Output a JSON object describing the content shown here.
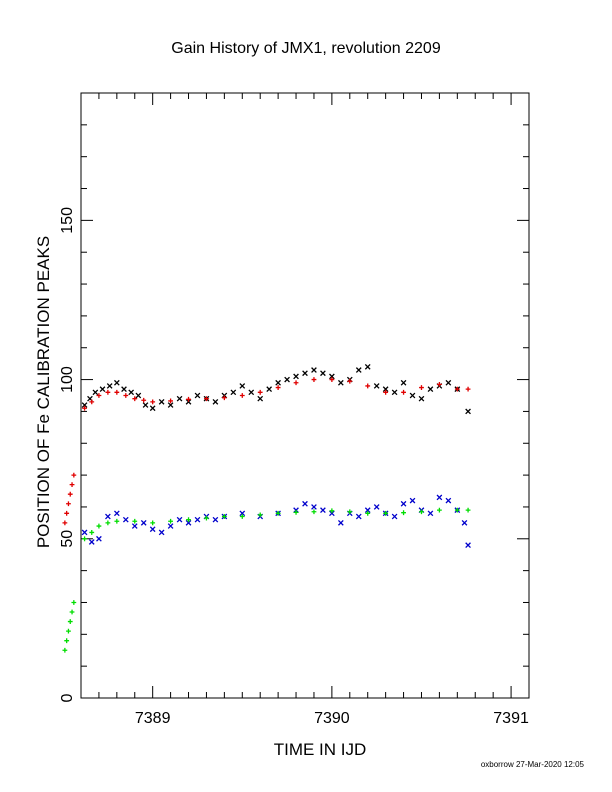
{
  "chart_data": {
    "type": "scatter",
    "title": "Gain History of JMX1, revolution 2209",
    "xlabel": "TIME IN IJD",
    "ylabel": "POSITION OF Fe CALIBRATION PEAKS",
    "xlim": [
      7388.6,
      7391.1
    ],
    "ylim": [
      0,
      190
    ],
    "xticks": [
      7389,
      7390,
      7391
    ],
    "yticks": [
      0,
      50,
      100,
      150
    ],
    "grid": false,
    "legend": "none",
    "footer": "oxborrow 27-Mar-2020 12:05",
    "series": [
      {
        "marker": "x",
        "color": "#000000",
        "points": [
          [
            7388.62,
            92
          ],
          [
            7388.65,
            94
          ],
          [
            7388.68,
            96
          ],
          [
            7388.72,
            97
          ],
          [
            7388.76,
            98
          ],
          [
            7388.8,
            99
          ],
          [
            7388.84,
            97
          ],
          [
            7388.88,
            96
          ],
          [
            7388.92,
            95
          ],
          [
            7388.96,
            92
          ],
          [
            7389.0,
            91
          ],
          [
            7389.05,
            93
          ],
          [
            7389.1,
            92
          ],
          [
            7389.15,
            94
          ],
          [
            7389.2,
            93
          ],
          [
            7389.25,
            95
          ],
          [
            7389.3,
            94
          ],
          [
            7389.35,
            93
          ],
          [
            7389.4,
            95
          ],
          [
            7389.45,
            96
          ],
          [
            7389.5,
            98
          ],
          [
            7389.55,
            96
          ],
          [
            7389.6,
            94
          ],
          [
            7389.65,
            97
          ],
          [
            7389.7,
            99
          ],
          [
            7389.75,
            100
          ],
          [
            7389.8,
            101
          ],
          [
            7389.85,
            102
          ],
          [
            7389.9,
            103
          ],
          [
            7389.95,
            102
          ],
          [
            7390.0,
            101
          ],
          [
            7390.05,
            99
          ],
          [
            7390.1,
            100
          ],
          [
            7390.15,
            103
          ],
          [
            7390.2,
            104
          ],
          [
            7390.25,
            98
          ],
          [
            7390.3,
            97
          ],
          [
            7390.35,
            96
          ],
          [
            7390.4,
            99
          ],
          [
            7390.45,
            95
          ],
          [
            7390.5,
            94
          ],
          [
            7390.55,
            97
          ],
          [
            7390.6,
            98
          ],
          [
            7390.65,
            99
          ],
          [
            7390.7,
            97
          ],
          [
            7390.76,
            90
          ]
        ]
      },
      {
        "marker": "plus",
        "color": "#e00000",
        "points": [
          [
            7388.62,
            91
          ],
          [
            7388.66,
            93
          ],
          [
            7388.7,
            95
          ],
          [
            7388.75,
            96
          ],
          [
            7388.8,
            96
          ],
          [
            7388.85,
            95
          ],
          [
            7388.9,
            94
          ],
          [
            7388.95,
            93.5
          ],
          [
            7389.0,
            93
          ],
          [
            7389.1,
            93.3
          ],
          [
            7389.2,
            93.8
          ],
          [
            7389.3,
            94
          ],
          [
            7389.4,
            94.3
          ],
          [
            7389.5,
            95
          ],
          [
            7389.6,
            96
          ],
          [
            7389.7,
            97.5
          ],
          [
            7389.8,
            99
          ],
          [
            7389.9,
            100
          ],
          [
            7390.0,
            100
          ],
          [
            7390.1,
            99.5
          ],
          [
            7390.2,
            98
          ],
          [
            7390.3,
            96
          ],
          [
            7390.4,
            96
          ],
          [
            7390.5,
            97.5
          ],
          [
            7390.6,
            98.5
          ],
          [
            7390.7,
            97
          ],
          [
            7390.76,
            97
          ]
        ]
      },
      {
        "marker": "x",
        "color": "#0000cc",
        "points": [
          [
            7388.62,
            52
          ],
          [
            7388.66,
            49
          ],
          [
            7388.7,
            50
          ],
          [
            7388.75,
            57
          ],
          [
            7388.8,
            58
          ],
          [
            7388.85,
            56
          ],
          [
            7388.9,
            54
          ],
          [
            7388.95,
            55
          ],
          [
            7389.0,
            53
          ],
          [
            7389.05,
            52
          ],
          [
            7389.1,
            54
          ],
          [
            7389.15,
            56
          ],
          [
            7389.2,
            55
          ],
          [
            7389.25,
            56
          ],
          [
            7389.3,
            57
          ],
          [
            7389.35,
            56
          ],
          [
            7389.4,
            57
          ],
          [
            7389.5,
            58
          ],
          [
            7389.6,
            57
          ],
          [
            7389.7,
            58
          ],
          [
            7389.8,
            59
          ],
          [
            7389.85,
            61
          ],
          [
            7389.9,
            60
          ],
          [
            7389.95,
            59
          ],
          [
            7390.0,
            58
          ],
          [
            7390.05,
            55
          ],
          [
            7390.1,
            58
          ],
          [
            7390.15,
            57
          ],
          [
            7390.2,
            59
          ],
          [
            7390.25,
            60
          ],
          [
            7390.3,
            58
          ],
          [
            7390.35,
            57
          ],
          [
            7390.4,
            61
          ],
          [
            7390.45,
            62
          ],
          [
            7390.5,
            59
          ],
          [
            7390.55,
            58
          ],
          [
            7390.6,
            63
          ],
          [
            7390.65,
            62
          ],
          [
            7390.7,
            59
          ],
          [
            7390.74,
            55
          ],
          [
            7390.76,
            48
          ]
        ]
      },
      {
        "marker": "plus",
        "color": "#00dd00",
        "points": [
          [
            7388.62,
            50
          ],
          [
            7388.66,
            52
          ],
          [
            7388.7,
            54
          ],
          [
            7388.75,
            55
          ],
          [
            7388.8,
            55.5
          ],
          [
            7388.9,
            55.5
          ],
          [
            7389.0,
            55
          ],
          [
            7389.1,
            55.5
          ],
          [
            7389.2,
            56
          ],
          [
            7389.3,
            56.5
          ],
          [
            7389.4,
            57
          ],
          [
            7389.5,
            57
          ],
          [
            7389.6,
            57.5
          ],
          [
            7389.7,
            58
          ],
          [
            7389.8,
            58.3
          ],
          [
            7389.9,
            58.5
          ],
          [
            7390.0,
            58.8
          ],
          [
            7390.1,
            58.5
          ],
          [
            7390.2,
            58
          ],
          [
            7390.3,
            58
          ],
          [
            7390.4,
            58.2
          ],
          [
            7390.5,
            58.5
          ],
          [
            7390.6,
            59
          ],
          [
            7390.7,
            59
          ],
          [
            7390.76,
            59
          ]
        ]
      },
      {
        "marker": "plus",
        "color": "#e00000",
        "points": [
          [
            7388.51,
            55
          ],
          [
            7388.52,
            58
          ],
          [
            7388.53,
            61
          ],
          [
            7388.54,
            64
          ],
          [
            7388.55,
            67
          ],
          [
            7388.56,
            70
          ]
        ]
      },
      {
        "marker": "plus",
        "color": "#00dd00",
        "points": [
          [
            7388.51,
            15
          ],
          [
            7388.52,
            18
          ],
          [
            7388.53,
            21
          ],
          [
            7388.54,
            24
          ],
          [
            7388.55,
            27
          ],
          [
            7388.56,
            30
          ]
        ]
      }
    ]
  }
}
